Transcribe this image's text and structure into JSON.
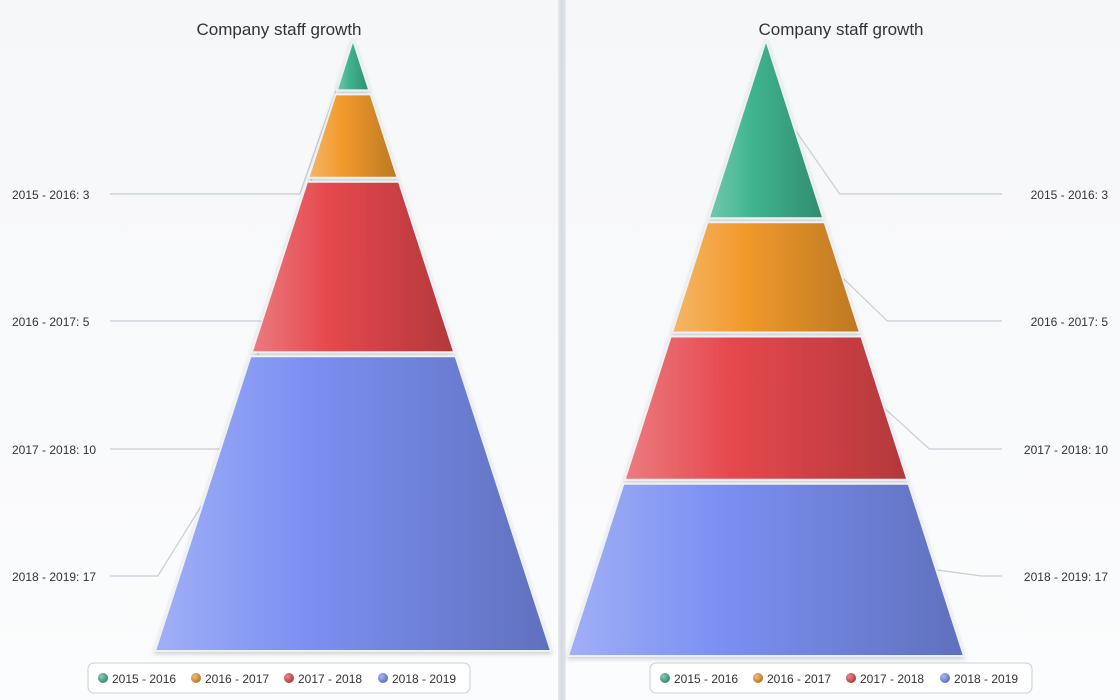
{
  "chart_data": [
    {
      "type": "pyramid",
      "title": "Company staff growth",
      "shape": "value-proportional height",
      "categories": [
        "2015 - 2016",
        "2016 - 2017",
        "2017 - 2018",
        "2018 - 2019"
      ],
      "values": [
        3,
        5,
        10,
        17
      ],
      "labels": [
        "2015 - 2016: 3",
        "2016 - 2017: 5",
        "2017 - 2018: 10",
        "2018 - 2019: 17"
      ],
      "label_position": "left",
      "legend": {
        "placement": "bottom-center",
        "entries": [
          "2015 - 2016",
          "2016 - 2017",
          "2017 - 2018",
          "2018 - 2019"
        ]
      }
    },
    {
      "type": "pyramid",
      "title": "Company staff growth",
      "shape": "value-proportional surface",
      "categories": [
        "2015 - 2016",
        "2016 - 2017",
        "2017 - 2018",
        "2018 - 2019"
      ],
      "values": [
        3,
        5,
        10,
        17
      ],
      "labels": [
        "2015 - 2016: 3",
        "2016 - 2017: 5",
        "2017 - 2018: 10",
        "2018 - 2019: 17"
      ],
      "label_position": "right",
      "legend": {
        "placement": "bottom-center",
        "entries": [
          "2015 - 2016",
          "2016 - 2017",
          "2017 - 2018",
          "2018 - 2019"
        ]
      }
    }
  ],
  "colors": {
    "2015 - 2016": "#3fb48f",
    "2016 - 2017": "#f19a2c",
    "2017 - 2018": "#e5484d",
    "2018 - 2019": "#7b90f2"
  }
}
